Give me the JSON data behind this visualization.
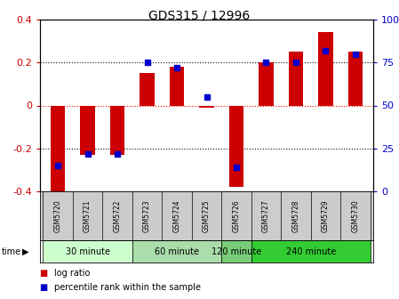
{
  "title": "GDS315 / 12996",
  "samples": [
    "GSM5720",
    "GSM5721",
    "GSM5722",
    "GSM5723",
    "GSM5724",
    "GSM5725",
    "GSM5726",
    "GSM5727",
    "GSM5728",
    "GSM5729",
    "GSM5730"
  ],
  "log_ratio": [
    -0.4,
    -0.23,
    -0.23,
    0.15,
    0.18,
    -0.01,
    -0.38,
    0.2,
    0.25,
    0.34,
    0.25
  ],
  "percentile": [
    15,
    22,
    22,
    75,
    72,
    55,
    14,
    75,
    75,
    82,
    80
  ],
  "groups": [
    {
      "label": "30 minute",
      "start": 0,
      "end": 3,
      "color": "#ccffcc"
    },
    {
      "label": "60 minute",
      "start": 3,
      "end": 6,
      "color": "#aaddaa"
    },
    {
      "label": "120 minute",
      "start": 6,
      "end": 7,
      "color": "#77cc77"
    },
    {
      "label": "240 minute",
      "start": 7,
      "end": 11,
      "color": "#33cc33"
    }
  ],
  "ylim": [
    -0.4,
    0.4
  ],
  "y2lim": [
    0,
    100
  ],
  "yticks": [
    -0.4,
    -0.2,
    0.0,
    0.2,
    0.4
  ],
  "ytick_labels": [
    "-0.4",
    "-0.2",
    "0",
    "0.2",
    "0.4"
  ],
  "y2ticks": [
    0,
    25,
    50,
    75,
    100
  ],
  "y2tick_labels": [
    "0",
    "25",
    "50",
    "75",
    "100%"
  ],
  "bar_color": "#cc0000",
  "dot_color": "#0000cc",
  "sample_bg": "#cccccc",
  "time_label": "time",
  "legend_log_ratio": "log ratio",
  "legend_percentile": "percentile rank within the sample"
}
